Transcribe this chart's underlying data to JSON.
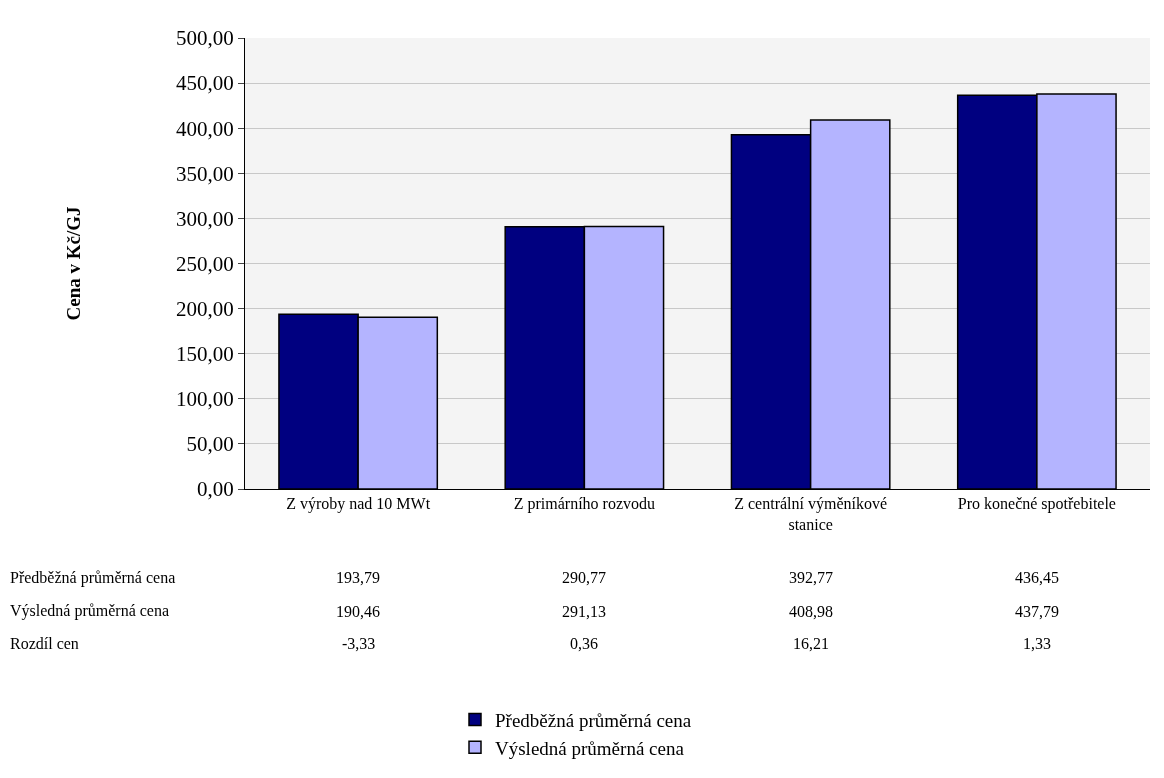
{
  "chart_data": {
    "type": "bar",
    "ylabel": "Cena v Kč/GJ",
    "categories": [
      "Z výroby nad 10 MWt",
      "Z primárního rozvodu",
      "Z centrální výměníkové stanice",
      "Pro konečné spotřebitele"
    ],
    "series": [
      {
        "name": "Předběžná průměrná cena",
        "color": "#000080",
        "values": [
          193.79,
          290.77,
          392.77,
          436.45
        ],
        "value_labels": [
          "193,79",
          "290,77",
          "392,77",
          "436,45"
        ]
      },
      {
        "name": "Výsledná průměrná cena",
        "color": "#b4b4ff",
        "values": [
          190.46,
          291.13,
          408.98,
          437.79
        ],
        "value_labels": [
          "190,46",
          "291,13",
          "408,98",
          "437,79"
        ]
      }
    ],
    "annotations": [
      "Rozdíl cen",
      "-3,33",
      "0,36",
      "16,21",
      "1,33"
    ],
    "ylim": [
      0,
      500
    ],
    "yticks": [
      {
        "value": 0,
        "label": "0,00"
      },
      {
        "value": 50,
        "label": "50,00"
      },
      {
        "value": 100,
        "label": "100,00"
      },
      {
        "value": 150,
        "label": "150,00"
      },
      {
        "value": 200,
        "label": "200,00"
      },
      {
        "value": 250,
        "label": "250,00"
      },
      {
        "value": 300,
        "label": "300,00"
      },
      {
        "value": 350,
        "label": "350,00"
      },
      {
        "value": 400,
        "label": "400,00"
      },
      {
        "value": 450,
        "label": "450,00"
      },
      {
        "value": 500,
        "label": "500,00"
      }
    ],
    "grid": "y",
    "legend": "bottom"
  }
}
